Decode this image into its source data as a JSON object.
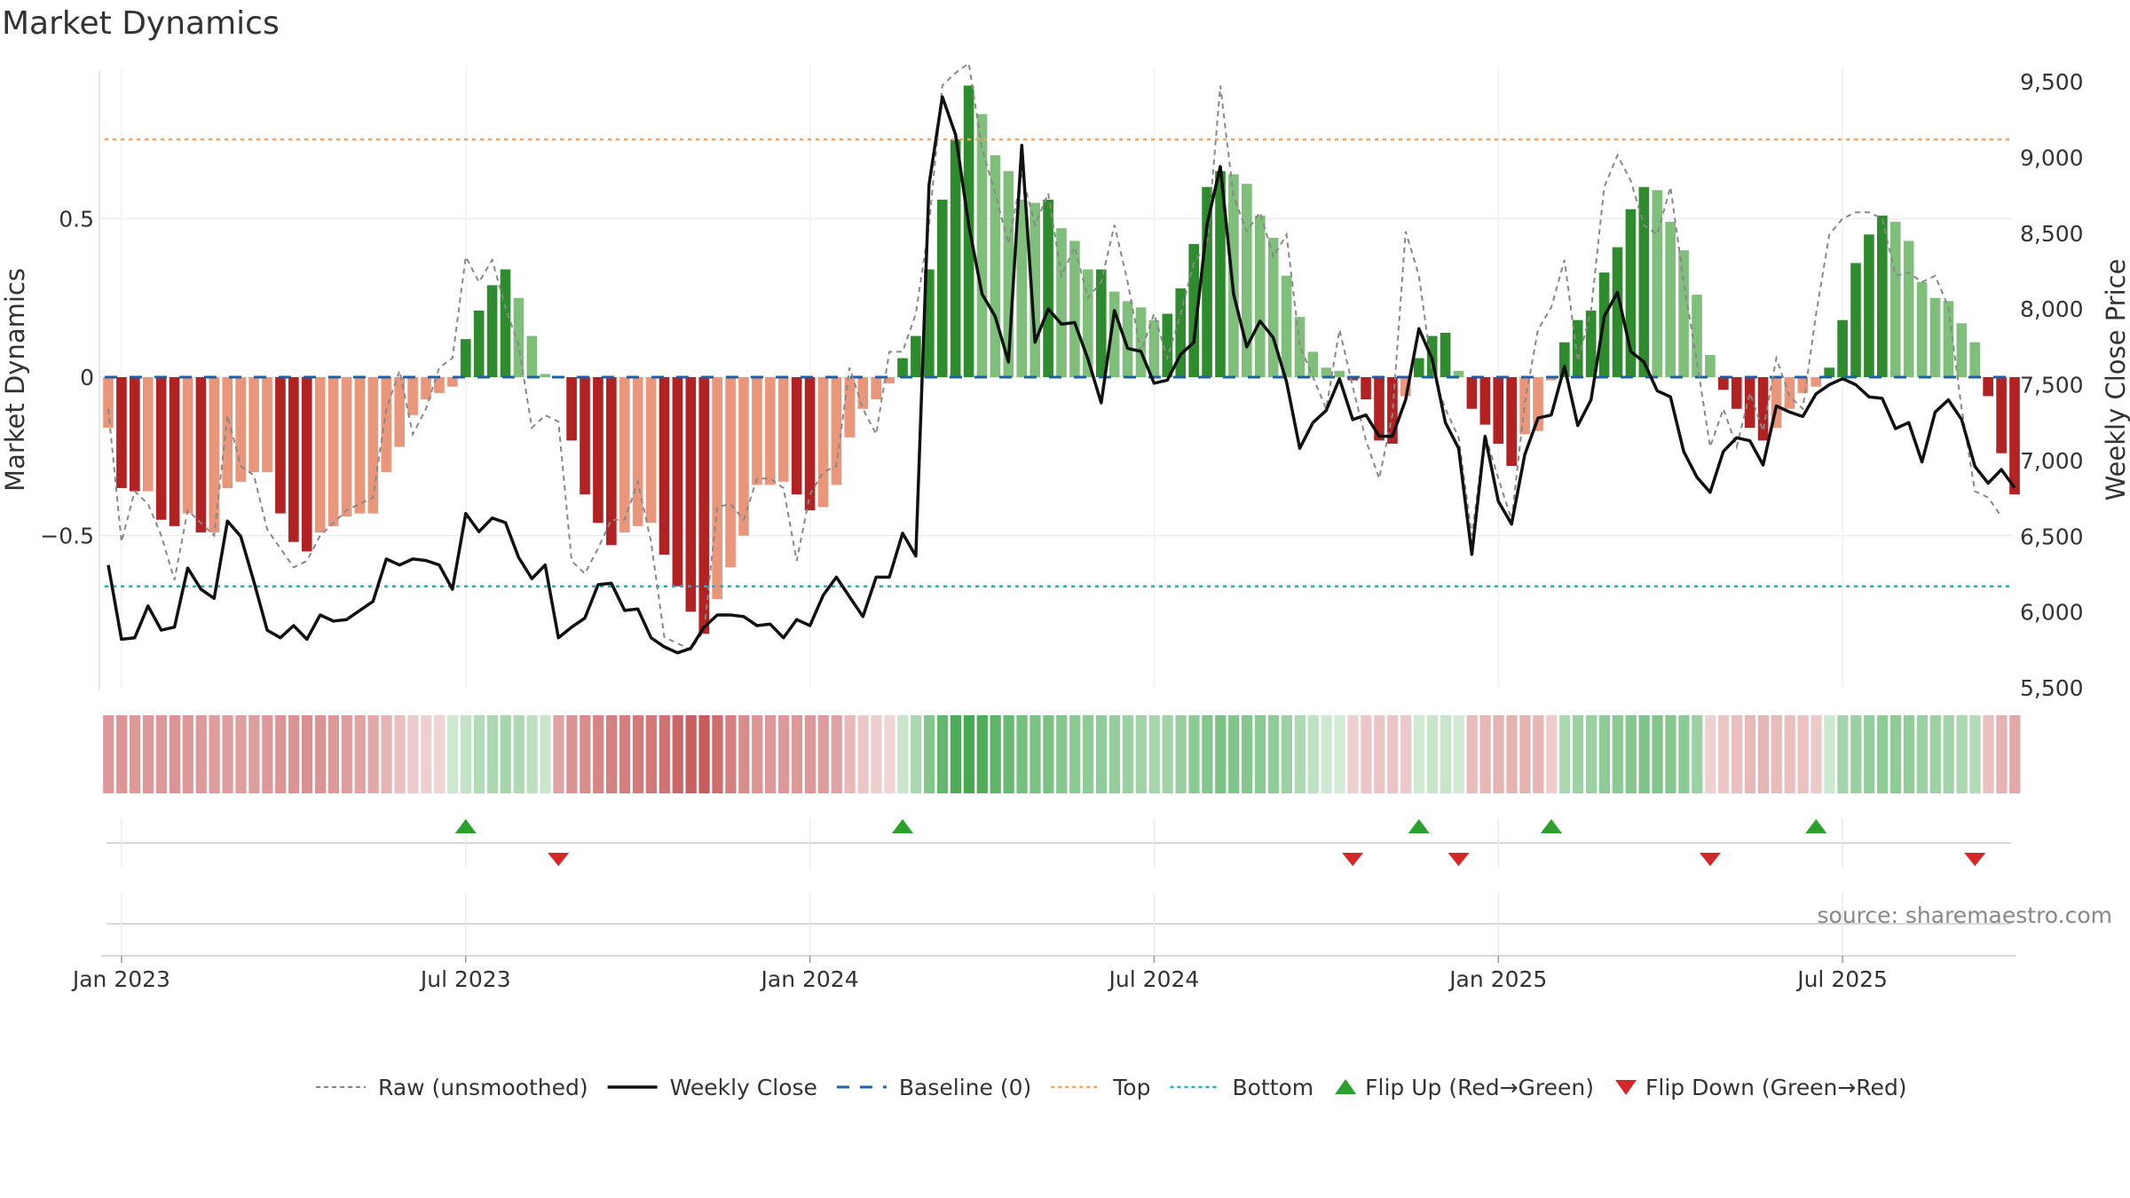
{
  "chart_data": {
    "type": "bar",
    "title": "Market Dynamics",
    "ylabel_left": "Market Dynamics",
    "ylabel_right": "Weekly Close Price",
    "y_left_ticks": [
      {
        "v": 0.5,
        "label": "0.5"
      },
      {
        "v": 0,
        "label": "0"
      },
      {
        "v": -0.5,
        "label": "−0.5"
      }
    ],
    "y_left_range": [
      -0.98,
      0.98
    ],
    "y_right_ticks": [
      {
        "v": 9500,
        "label": "9,500"
      },
      {
        "v": 9000,
        "label": "9,000"
      },
      {
        "v": 8500,
        "label": "8,500"
      },
      {
        "v": 8000,
        "label": "8,000"
      },
      {
        "v": 7500,
        "label": "7,500"
      },
      {
        "v": 7000,
        "label": "7,000"
      },
      {
        "v": 6500,
        "label": "6,500"
      },
      {
        "v": 6000,
        "label": "6,000"
      },
      {
        "v": 5500,
        "label": "5,500"
      }
    ],
    "y_right_range": [
      5500,
      9600
    ],
    "x_ticks": [
      {
        "i": 1,
        "label": "Jan 2023"
      },
      {
        "i": 27,
        "label": "Jul 2023"
      },
      {
        "i": 53,
        "label": "Jan 2024"
      },
      {
        "i": 79,
        "label": "Jul 2024"
      },
      {
        "i": 105,
        "label": "Jan 2025"
      },
      {
        "i": 131,
        "label": "Jul 2025"
      }
    ],
    "top_line": 0.75,
    "bottom_line": -0.66,
    "baseline": 0,
    "dynamics": [
      -0.16,
      -0.35,
      -0.36,
      -0.36,
      -0.45,
      -0.47,
      -0.43,
      -0.49,
      -0.49,
      -0.35,
      -0.33,
      -0.3,
      -0.3,
      -0.43,
      -0.52,
      -0.55,
      -0.49,
      -0.47,
      -0.44,
      -0.43,
      -0.43,
      -0.3,
      -0.22,
      -0.12,
      -0.07,
      -0.05,
      -0.03,
      0.12,
      0.21,
      0.29,
      0.34,
      0.25,
      0.13,
      0.01,
      0,
      -0.2,
      -0.37,
      -0.46,
      -0.53,
      -0.49,
      -0.47,
      -0.46,
      -0.56,
      -0.66,
      -0.74,
      -0.81,
      -0.7,
      -0.6,
      -0.5,
      -0.34,
      -0.34,
      -0.33,
      -0.37,
      -0.42,
      -0.41,
      -0.34,
      -0.19,
      -0.1,
      -0.07,
      -0.02,
      0.06,
      0.13,
      0.34,
      0.56,
      0.75,
      0.92,
      0.83,
      0.7,
      0.65,
      0.56,
      0.55,
      0.56,
      0.47,
      0.43,
      0.34,
      0.34,
      0.27,
      0.24,
      0.22,
      0.18,
      0.2,
      0.28,
      0.42,
      0.6,
      0.65,
      0.64,
      0.61,
      0.51,
      0.44,
      0.32,
      0.19,
      0.08,
      0.03,
      0.02,
      -0.01,
      -0.07,
      -0.2,
      -0.21,
      -0.06,
      0.06,
      0.13,
      0.14,
      0.02,
      -0.1,
      -0.15,
      -0.21,
      -0.28,
      -0.18,
      -0.17,
      -0.01,
      0.11,
      0.18,
      0.21,
      0.33,
      0.41,
      0.53,
      0.6,
      0.59,
      0.49,
      0.4,
      0.26,
      0.07,
      -0.04,
      -0.1,
      -0.16,
      -0.2,
      -0.16,
      -0.1,
      -0.05,
      -0.03,
      0.03,
      0.18,
      0.36,
      0.45,
      0.51,
      0.49,
      0.43,
      0.3,
      0.25,
      0.24,
      0.17,
      0.11,
      -0.06,
      -0.24,
      -0.37
    ],
    "raw": [
      -0.1,
      -0.52,
      -0.36,
      -0.4,
      -0.5,
      -0.64,
      -0.42,
      -0.46,
      -0.5,
      -0.12,
      -0.28,
      -0.31,
      -0.48,
      -0.54,
      -0.6,
      -0.58,
      -0.5,
      -0.46,
      -0.42,
      -0.4,
      -0.38,
      -0.1,
      0.02,
      -0.18,
      -0.1,
      0.03,
      0.06,
      0.38,
      0.3,
      0.37,
      0.22,
      0.1,
      -0.16,
      -0.12,
      -0.14,
      -0.58,
      -0.62,
      -0.54,
      -0.45,
      -0.45,
      -0.33,
      -0.52,
      -0.82,
      -0.84,
      -0.86,
      -0.8,
      -0.41,
      -0.4,
      -0.45,
      -0.32,
      -0.32,
      -0.35,
      -0.58,
      -0.37,
      -0.3,
      -0.28,
      0.03,
      -0.1,
      -0.18,
      0.08,
      0.08,
      0.2,
      0.48,
      0.92,
      0.96,
      0.99,
      0.72,
      0.58,
      0.42,
      0.64,
      0.48,
      0.58,
      0.32,
      0.41,
      0.25,
      0.3,
      0.48,
      0.3,
      0.08,
      0.2,
      0.06,
      0.2,
      0.36,
      0.42,
      0.92,
      0.57,
      0.46,
      0.52,
      0.38,
      0.45,
      0.1,
      0,
      -0.1,
      0.15,
      -0.03,
      -0.2,
      -0.32,
      -0.12,
      0.46,
      0.32,
      0.02,
      -0.1,
      -0.19,
      -0.5,
      -0.18,
      -0.32,
      -0.45,
      -0.08,
      0.15,
      0.22,
      0.37,
      0.05,
      0.21,
      0.6,
      0.7,
      0.62,
      0.48,
      0.45,
      0.6,
      0.3,
      0.05,
      -0.22,
      -0.1,
      -0.22,
      -0.05,
      -0.17,
      0.06,
      -0.06,
      -0.1,
      0.2,
      0.45,
      0.5,
      0.52,
      0.52,
      0.5,
      0.32,
      0.33,
      0.3,
      0.32,
      0.22,
      -0.1,
      -0.36,
      -0.38,
      -0.44
    ],
    "weekly_close": [
      6310,
      5820,
      5830,
      6040,
      5880,
      5900,
      6290,
      6150,
      6090,
      6600,
      6500,
      6200,
      5880,
      5830,
      5910,
      5820,
      5980,
      5940,
      5950,
      6010,
      6070,
      6350,
      6310,
      6350,
      6340,
      6310,
      6150,
      6650,
      6530,
      6620,
      6590,
      6360,
      6220,
      6310,
      5830,
      5900,
      5960,
      6180,
      6190,
      6010,
      6020,
      5830,
      5770,
      5730,
      5760,
      5900,
      5980,
      5980,
      5970,
      5910,
      5920,
      5830,
      5950,
      5910,
      6110,
      6230,
      6100,
      5970,
      6230,
      6230,
      6520,
      6370,
      8820,
      9400,
      9150,
      8550,
      8100,
      7950,
      7650,
      9080,
      7780,
      8000,
      7900,
      7910,
      7670,
      7380,
      7990,
      7740,
      7720,
      7510,
      7530,
      7700,
      7780,
      8560,
      8940,
      8100,
      7750,
      7920,
      7810,
      7520,
      7080,
      7250,
      7330,
      7540,
      7270,
      7300,
      7160,
      7160,
      7400,
      7870,
      7670,
      7250,
      7080,
      6380,
      7160,
      6730,
      6580,
      7040,
      7280,
      7300,
      7620,
      7230,
      7400,
      7950,
      8110,
      7720,
      7650,
      7460,
      7420,
      7060,
      6890,
      6790,
      7060,
      7150,
      7130,
      6970,
      7360,
      7320,
      7290,
      7440,
      7500,
      7540,
      7500,
      7420,
      7410,
      7210,
      7250,
      6990,
      7320,
      7400,
      7270,
      6960,
      6850,
      6940,
      6820
    ],
    "heat_strip": [
      -0.45,
      -0.48,
      -0.46,
      -0.45,
      -0.47,
      -0.49,
      -0.47,
      -0.45,
      -0.43,
      -0.41,
      -0.42,
      -0.43,
      -0.45,
      -0.48,
      -0.5,
      -0.52,
      -0.5,
      -0.47,
      -0.43,
      -0.4,
      -0.36,
      -0.28,
      -0.2,
      -0.12,
      -0.08,
      -0.05,
      0.08,
      0.15,
      0.25,
      0.3,
      0.32,
      0.28,
      0.18,
      0.1,
      -0.4,
      -0.5,
      -0.55,
      -0.6,
      -0.62,
      -0.64,
      -0.66,
      -0.68,
      -0.72,
      -0.8,
      -0.86,
      -0.88,
      -0.78,
      -0.62,
      -0.54,
      -0.48,
      -0.46,
      -0.45,
      -0.46,
      -0.45,
      -0.43,
      -0.38,
      -0.24,
      -0.14,
      -0.1,
      -0.06,
      0.1,
      0.3,
      0.55,
      0.75,
      0.9,
      0.95,
      0.88,
      0.78,
      0.72,
      0.62,
      0.6,
      0.6,
      0.55,
      0.5,
      0.48,
      0.46,
      0.44,
      0.4,
      0.36,
      0.32,
      0.36,
      0.42,
      0.5,
      0.55,
      0.6,
      0.58,
      0.55,
      0.5,
      0.46,
      0.38,
      0.28,
      0.16,
      0.08,
      0.04,
      -0.08,
      -0.14,
      -0.16,
      -0.16,
      -0.12,
      0.06,
      0.1,
      0.12,
      0.06,
      -0.22,
      -0.25,
      -0.28,
      -0.3,
      -0.28,
      -0.25,
      -0.1,
      0.3,
      0.38,
      0.4,
      0.46,
      0.5,
      0.55,
      0.58,
      0.56,
      0.54,
      0.5,
      0.4,
      -0.08,
      -0.14,
      -0.2,
      -0.24,
      -0.26,
      -0.22,
      -0.2,
      -0.18,
      -0.12,
      0.08,
      0.35,
      0.4,
      0.44,
      0.48,
      0.48,
      0.45,
      0.4,
      0.38,
      0.35,
      0.3,
      0.25,
      -0.2,
      -0.3,
      -0.36
    ],
    "flip_up": [
      27,
      60,
      99,
      109,
      129
    ],
    "flip_down": [
      34,
      94,
      102,
      121,
      141
    ],
    "legend": [
      {
        "key": "raw",
        "label": "Raw (unsmoothed)"
      },
      {
        "key": "close",
        "label": "Weekly Close"
      },
      {
        "key": "baseline",
        "label": "Baseline (0)"
      },
      {
        "key": "top",
        "label": "Top"
      },
      {
        "key": "bottom",
        "label": "Bottom"
      },
      {
        "key": "up",
        "label": "Flip Up (Red→Green)"
      },
      {
        "key": "down",
        "label": "Flip Down (Green→Red)"
      }
    ],
    "legend_position": "bottom",
    "grid": true
  },
  "source_note": "source: sharemaestro.com",
  "colors": {
    "green_strong": "#2e8b2e",
    "green_light": "#7fbf7b",
    "red_strong": "#b22222",
    "red_light": "#e9967a",
    "close_line": "#111111",
    "raw_line": "#888888",
    "baseline": "#1f5fa8",
    "top": "#f4a460",
    "bottom": "#20b2c0",
    "flip_up": "#2ca02c",
    "flip_down": "#d62728"
  }
}
